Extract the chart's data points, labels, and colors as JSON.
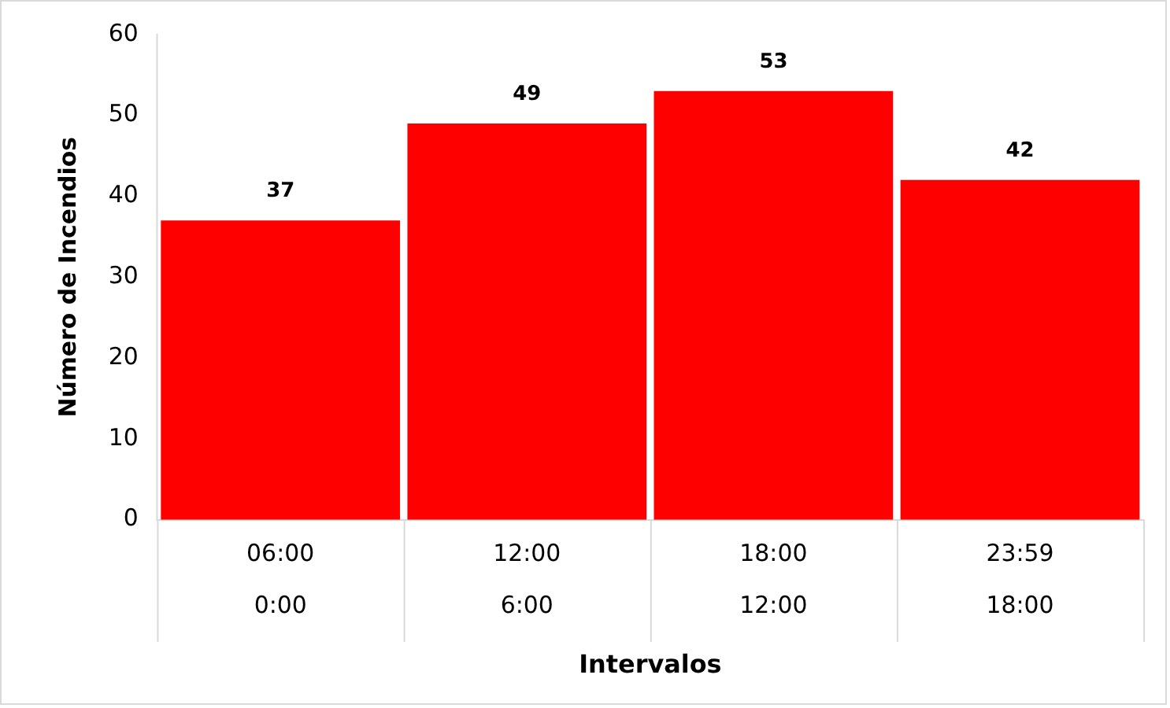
{
  "chart_data": {
    "type": "bar",
    "xlabel": "Intervalos",
    "ylabel": "Número de Incendios",
    "categories": [
      "06:00\n0:00",
      "12:00\n6:00",
      "18:00\n12:00",
      "23:59\n18:00"
    ],
    "values": [
      37,
      49,
      53,
      42
    ],
    "color": "#ff0000",
    "ylim": [
      0,
      60
    ],
    "yticks": [
      0,
      10,
      20,
      30,
      40,
      50,
      60
    ],
    "grid": false,
    "legend": false,
    "data_labels": true
  }
}
